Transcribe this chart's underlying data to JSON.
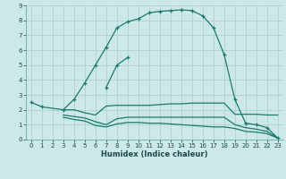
{
  "bg_color": "#cce8e8",
  "line_color": "#1a7a6e",
  "grid_color": "#aacccc",
  "xlabel": "Humidex (Indice chaleur)",
  "xlim": [
    -0.5,
    23.5
  ],
  "ylim": [
    0,
    9
  ],
  "xticks": [
    0,
    1,
    2,
    3,
    4,
    5,
    6,
    7,
    8,
    9,
    10,
    11,
    12,
    13,
    14,
    15,
    16,
    17,
    18,
    19,
    20,
    21,
    22,
    23
  ],
  "yticks": [
    0,
    1,
    2,
    3,
    4,
    5,
    6,
    7,
    8,
    9
  ],
  "curve1_x": [
    0,
    1,
    3,
    4,
    5,
    6,
    7,
    8,
    9,
    10,
    11,
    12,
    13,
    14,
    15,
    16,
    17,
    18,
    19,
    20,
    21,
    22,
    23
  ],
  "curve1_y": [
    2.5,
    2.2,
    2.0,
    2.7,
    3.8,
    5.0,
    6.2,
    7.5,
    7.9,
    8.1,
    8.5,
    8.6,
    8.65,
    8.7,
    8.65,
    8.3,
    7.5,
    5.7,
    2.7,
    1.1,
    1.0,
    0.8,
    0.1
  ],
  "curve2_x": [
    7,
    8,
    9
  ],
  "curve2_y": [
    3.5,
    5.0,
    5.5
  ],
  "curve3_x": [
    3,
    4,
    5,
    6,
    7,
    8,
    9,
    10,
    11,
    12,
    13,
    14,
    15,
    16,
    17,
    18,
    19,
    20,
    21,
    22,
    23
  ],
  "curve3_y": [
    2.0,
    2.0,
    1.8,
    1.65,
    2.25,
    2.3,
    2.3,
    2.3,
    2.3,
    2.35,
    2.4,
    2.4,
    2.45,
    2.45,
    2.45,
    2.45,
    1.7,
    1.7,
    1.7,
    1.65,
    1.65
  ],
  "curve4_x": [
    3,
    4,
    5,
    6,
    7,
    8,
    9,
    10,
    11,
    12,
    13,
    14,
    15,
    16,
    17,
    18,
    19,
    20,
    21,
    22,
    23
  ],
  "curve4_y": [
    1.65,
    1.55,
    1.45,
    1.2,
    1.0,
    1.4,
    1.5,
    1.5,
    1.5,
    1.5,
    1.5,
    1.5,
    1.5,
    1.5,
    1.5,
    1.5,
    1.0,
    0.8,
    0.7,
    0.55,
    0.1
  ],
  "curve5_x": [
    3,
    4,
    5,
    6,
    7,
    8,
    9,
    10,
    11,
    12,
    13,
    14,
    15,
    16,
    17,
    18,
    19,
    20,
    21,
    22,
    23
  ],
  "curve5_y": [
    1.5,
    1.35,
    1.25,
    0.95,
    0.85,
    1.05,
    1.15,
    1.15,
    1.1,
    1.1,
    1.05,
    1.0,
    0.95,
    0.9,
    0.85,
    0.85,
    0.75,
    0.55,
    0.5,
    0.4,
    0.1
  ]
}
